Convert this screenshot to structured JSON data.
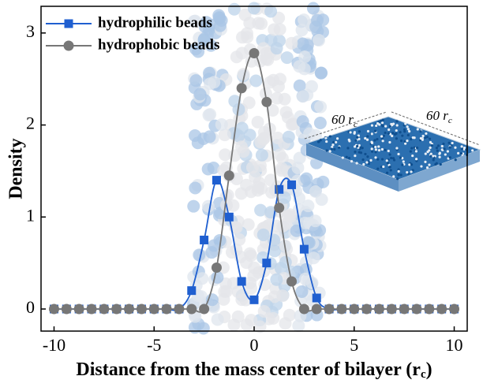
{
  "chart_data": {
    "type": "line",
    "x_label": [
      "Distance from the mass center of bilayer (r",
      "c",
      ")"
    ],
    "y_label": "Density",
    "x": [
      -10,
      -9.375,
      -8.75,
      -8.125,
      -7.5,
      -6.875,
      -6.25,
      -5.625,
      -5,
      -4.375,
      -3.75,
      -3.125,
      -2.5,
      -1.875,
      -1.25,
      -0.625,
      0,
      0.625,
      1.25,
      1.875,
      2.5,
      3.125,
      3.75,
      4.375,
      5,
      5.625,
      6.25,
      6.875,
      7.5,
      8.125,
      8.75,
      9.375,
      10
    ],
    "series": [
      {
        "name": "hydrophilic beads",
        "color": "#1f5fd0",
        "marker": "square",
        "values": [
          0,
          0,
          0,
          0,
          0,
          0,
          0,
          0,
          0,
          0,
          0,
          0.2,
          0.75,
          1.4,
          1.0,
          0.3,
          0.1,
          0.5,
          1.3,
          1.35,
          0.65,
          0.12,
          0,
          0,
          0,
          0,
          0,
          0,
          0,
          0,
          0,
          0,
          0
        ]
      },
      {
        "name": "hydrophobic beads",
        "color": "#777777",
        "marker": "circle",
        "values": [
          0,
          0,
          0,
          0,
          0,
          0,
          0,
          0,
          0,
          0,
          0,
          0,
          0,
          0.45,
          1.45,
          2.4,
          2.78,
          2.25,
          1.1,
          0.3,
          0,
          0,
          0,
          0,
          0,
          0,
          0,
          0,
          0,
          0,
          0,
          0,
          0
        ]
      }
    ],
    "xlim": [
      -10.65,
      10.65
    ],
    "xticks": [
      -10,
      -5,
      0,
      5,
      10
    ],
    "ylim": [
      -0.24,
      3.29
    ],
    "yticks": [
      0,
      1,
      2,
      3
    ],
    "legend": "top-left",
    "annotations": [
      {
        "text": "60 r",
        "sub": "c"
      },
      {
        "text": "60 r",
        "sub": "c"
      }
    ]
  }
}
